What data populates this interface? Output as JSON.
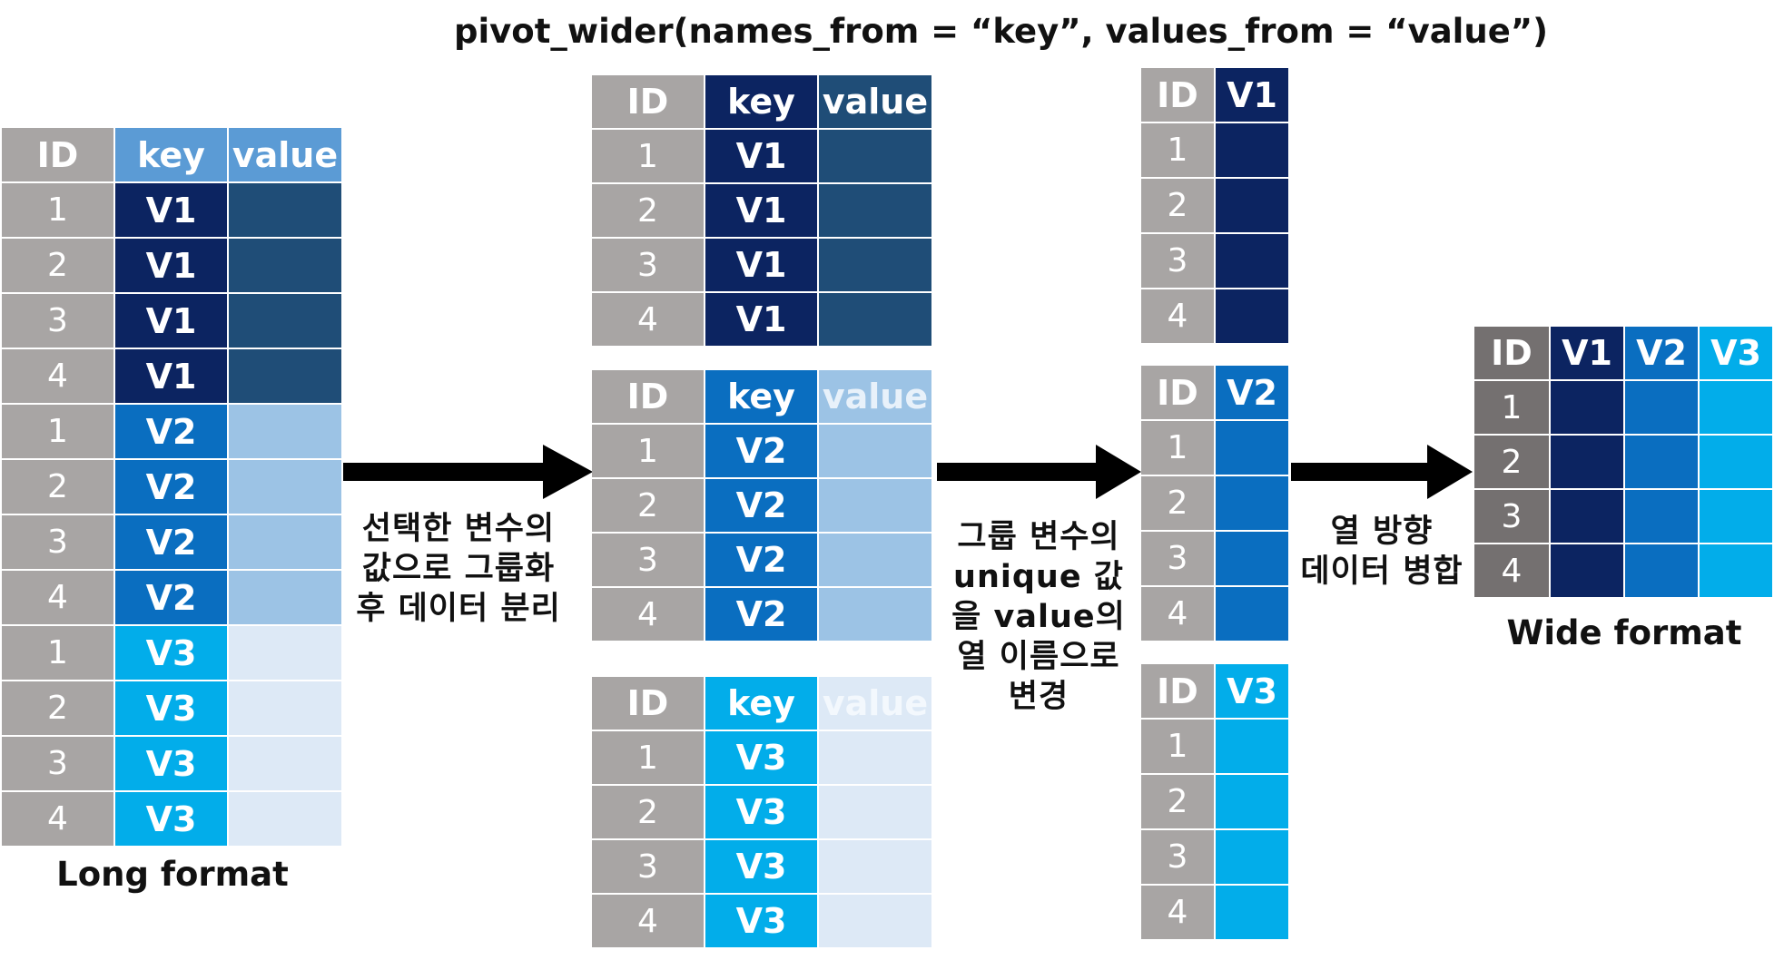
{
  "title": "pivot_wider(names_from = “key”, values_from = “value”)",
  "colors": {
    "id_bg": "#a8a5a4",
    "id_bg_dark": "#747070",
    "v1": "#0c2461",
    "v2": "#0a6ec0",
    "v3": "#02adea",
    "v1_value": "#1f4d77",
    "v2_value": "#9cc3e5",
    "v3_value": "#dde9f6",
    "key_header_long": "#5b9bd5",
    "value_header_long": "#5b9bd5"
  },
  "headers": {
    "id": "ID",
    "key": "key",
    "value": "value"
  },
  "long_table": {
    "caption": "Long format",
    "rows": [
      {
        "id": "1",
        "key": "V1"
      },
      {
        "id": "2",
        "key": "V1"
      },
      {
        "id": "3",
        "key": "V1"
      },
      {
        "id": "4",
        "key": "V1"
      },
      {
        "id": "1",
        "key": "V2"
      },
      {
        "id": "2",
        "key": "V2"
      },
      {
        "id": "3",
        "key": "V2"
      },
      {
        "id": "4",
        "key": "V2"
      },
      {
        "id": "1",
        "key": "V3"
      },
      {
        "id": "2",
        "key": "V3"
      },
      {
        "id": "3",
        "key": "V3"
      },
      {
        "id": "4",
        "key": "V3"
      }
    ]
  },
  "step1_label": [
    "선택한 변수의",
    "값으로 그룹화",
    "후 데이터 분리"
  ],
  "group_tables": [
    {
      "key": "V1",
      "ids": [
        "1",
        "2",
        "3",
        "4"
      ]
    },
    {
      "key": "V2",
      "ids": [
        "1",
        "2",
        "3",
        "4"
      ]
    },
    {
      "key": "V3",
      "ids": [
        "1",
        "2",
        "3",
        "4"
      ]
    }
  ],
  "step2_label": [
    "그룹 변수의",
    "unique 값",
    "을 value의",
    "열 이름으로",
    "변경"
  ],
  "renamed_tables": [
    {
      "col": "V1",
      "ids": [
        "1",
        "2",
        "3",
        "4"
      ]
    },
    {
      "col": "V2",
      "ids": [
        "1",
        "2",
        "3",
        "4"
      ]
    },
    {
      "col": "V3",
      "ids": [
        "1",
        "2",
        "3",
        "4"
      ]
    }
  ],
  "step3_label": [
    "열 방향",
    "데이터 병합"
  ],
  "wide_table": {
    "caption": "Wide format",
    "columns": [
      "ID",
      "V1",
      "V2",
      "V3"
    ],
    "ids": [
      "1",
      "2",
      "3",
      "4"
    ]
  }
}
